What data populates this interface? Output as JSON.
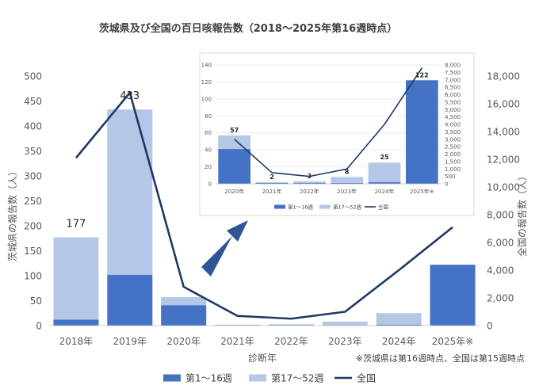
{
  "chart_data": [
    {
      "type": "bar",
      "title": "茨城県及び全国の百日咳報告数（2018～2025年第16週時点）",
      "xlabel": "診断年",
      "ylabel": "茨城県の報告数（人）",
      "y2label": "全国の報告数（人）",
      "categories": [
        "2018年",
        "2019年",
        "2020年",
        "2021年",
        "2022年",
        "2023年",
        "2024年",
        "2025年※"
      ],
      "ylim": [
        0,
        500
      ],
      "y_ticks": [
        "0",
        "50",
        "100",
        "150",
        "200",
        "250",
        "300",
        "350",
        "400",
        "450",
        "500"
      ],
      "y2lim": [
        0,
        18000
      ],
      "y2_ticks": [
        "0",
        "2,000",
        "4,000",
        "6,000",
        "8,000",
        "10,000",
        "12,000",
        "14,000",
        "16,000",
        "18,000"
      ],
      "series": [
        {
          "name": "第1～16週",
          "kind": "bar-stack",
          "color": "#4472c4",
          "values": [
            12,
            102,
            41,
            1,
            1,
            1,
            2,
            122
          ]
        },
        {
          "name": "第17～52週",
          "kind": "bar-stack",
          "color": "#b4c7e7",
          "values": [
            165,
            331,
            16,
            1,
            2,
            7,
            23,
            0
          ]
        },
        {
          "name": "全国",
          "kind": "line",
          "axis": "y2",
          "color": "#1f3864",
          "values": [
            12100,
            16800,
            2800,
            700,
            500,
            1000,
            4000,
            7100
          ]
        }
      ],
      "data_labels": [
        {
          "index": 0,
          "text": "177"
        },
        {
          "index": 1,
          "text": "433"
        }
      ],
      "legend": [
        "第1～16週",
        "第17～52週",
        "全国"
      ],
      "legend_position": "bottom",
      "footnote": "※茨城県は第16週時点、全国は第15週時点",
      "grid": false
    },
    {
      "type": "bar",
      "title": "",
      "categories": [
        "2020年",
        "2021年",
        "2022年",
        "2023年",
        "2024年",
        "2025年※"
      ],
      "ylim": [
        0,
        140
      ],
      "y_ticks": [
        "0",
        "20",
        "40",
        "60",
        "80",
        "100",
        "120",
        "140"
      ],
      "y2lim": [
        0,
        8000
      ],
      "y2_ticks": [
        "0",
        "500",
        "1,000",
        "1,500",
        "2,000",
        "2,500",
        "3,000",
        "3,500",
        "4,000",
        "4,500",
        "5,000",
        "5,500",
        "6,000",
        "6,500",
        "7,000",
        "7,500",
        "8,000"
      ],
      "series": [
        {
          "name": "第1～16週",
          "kind": "bar-stack",
          "color": "#4472c4",
          "values": [
            41,
            1,
            1,
            1,
            2,
            122
          ]
        },
        {
          "name": "第17～52週",
          "kind": "bar-stack",
          "color": "#b4c7e7",
          "values": [
            16,
            1,
            2,
            7,
            23,
            0
          ]
        },
        {
          "name": "全国",
          "kind": "line",
          "axis": "y2",
          "color": "#1f3864",
          "values": [
            3000,
            750,
            500,
            1000,
            4000,
            7800
          ]
        }
      ],
      "data_labels": [
        {
          "index": 0,
          "text": "57"
        },
        {
          "index": 1,
          "text": "2"
        },
        {
          "index": 2,
          "text": "3"
        },
        {
          "index": 3,
          "text": "8"
        },
        {
          "index": 4,
          "text": "25"
        },
        {
          "index": 5,
          "text": "122"
        }
      ],
      "legend": [
        "第1～16週",
        "第17～52週",
        "全国"
      ],
      "legend_position": "bottom",
      "grid": true
    }
  ],
  "colors": {
    "arrow": "#2f5597"
  }
}
